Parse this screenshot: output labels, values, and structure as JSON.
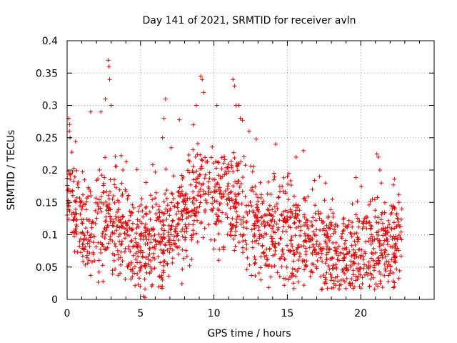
{
  "chart_data": {
    "type": "scatter",
    "title": "Day 141 of 2021, SRMTID for receiver avln",
    "xlabel": "GPS time / hours",
    "ylabel": "SRMTID / TECUs",
    "xlim": [
      0,
      25
    ],
    "ylim": [
      0,
      0.4
    ],
    "x_ticks": [
      0,
      5,
      10,
      15,
      20
    ],
    "x_tick_labels": [
      "0",
      "5",
      "10",
      "15",
      "20"
    ],
    "y_ticks": [
      0,
      0.05,
      0.1,
      0.15,
      0.2,
      0.25,
      0.3,
      0.35,
      0.4
    ],
    "y_tick_labels": [
      "0",
      "0.05",
      "0.1",
      "0.15",
      "0.2",
      "0.25",
      "0.3",
      "0.35",
      "0.4"
    ],
    "grid": true,
    "marker": "plus",
    "marker_color": "#e00000",
    "series": [
      {
        "name": "SRMTID",
        "trend": [
          [
            0.0,
            0.16
          ],
          [
            0.3,
            0.17
          ],
          [
            0.8,
            0.11
          ],
          [
            1.5,
            0.1
          ],
          [
            2.5,
            0.12
          ],
          [
            3.5,
            0.11
          ],
          [
            4.5,
            0.1
          ],
          [
            5.0,
            0.085
          ],
          [
            5.5,
            0.09
          ],
          [
            6.5,
            0.09
          ],
          [
            7.5,
            0.11
          ],
          [
            8.5,
            0.14
          ],
          [
            9.0,
            0.17
          ],
          [
            9.5,
            0.16
          ],
          [
            10.5,
            0.15
          ],
          [
            11.5,
            0.14
          ],
          [
            12.5,
            0.12
          ],
          [
            13.5,
            0.1
          ],
          [
            14.5,
            0.11
          ],
          [
            15.5,
            0.1
          ],
          [
            16.5,
            0.095
          ],
          [
            17.5,
            0.075
          ],
          [
            18.5,
            0.065
          ],
          [
            19.5,
            0.07
          ],
          [
            20.5,
            0.075
          ],
          [
            21.5,
            0.08
          ],
          [
            22.8,
            0.09
          ]
        ],
        "spikes": [
          [
            0.1,
            0.28
          ],
          [
            0.2,
            0.25
          ],
          [
            1.6,
            0.29
          ],
          [
            2.3,
            0.29
          ],
          [
            2.6,
            0.31
          ],
          [
            2.8,
            0.37
          ],
          [
            2.85,
            0.36
          ],
          [
            2.9,
            0.34
          ],
          [
            3.0,
            0.3
          ],
          [
            3.8,
            0.2
          ],
          [
            5.2,
            0.005
          ],
          [
            5.3,
            0.003
          ],
          [
            6.5,
            0.25
          ],
          [
            6.6,
            0.28
          ],
          [
            6.7,
            0.31
          ],
          [
            8.6,
            0.27
          ],
          [
            8.8,
            0.3
          ],
          [
            9.1,
            0.345
          ],
          [
            9.2,
            0.34
          ],
          [
            9.3,
            0.32
          ],
          [
            10.2,
            0.3
          ],
          [
            11.3,
            0.34
          ],
          [
            11.4,
            0.33
          ],
          [
            11.5,
            0.3
          ],
          [
            11.7,
            0.3
          ],
          [
            11.8,
            0.28
          ],
          [
            12.4,
            0.26
          ],
          [
            14.2,
            0.24
          ],
          [
            15.6,
            0.22
          ],
          [
            16.1,
            0.23
          ],
          [
            17.2,
            0.19
          ],
          [
            17.6,
            0.18
          ],
          [
            21.1,
            0.225
          ],
          [
            21.2,
            0.22
          ],
          [
            21.3,
            0.2
          ],
          [
            21.4,
            0.18
          ],
          [
            22.6,
            0.15
          ],
          [
            0.15,
            0.26
          ],
          [
            6.4,
            0.02
          ],
          [
            6.5,
            0.03
          ]
        ]
      }
    ]
  }
}
